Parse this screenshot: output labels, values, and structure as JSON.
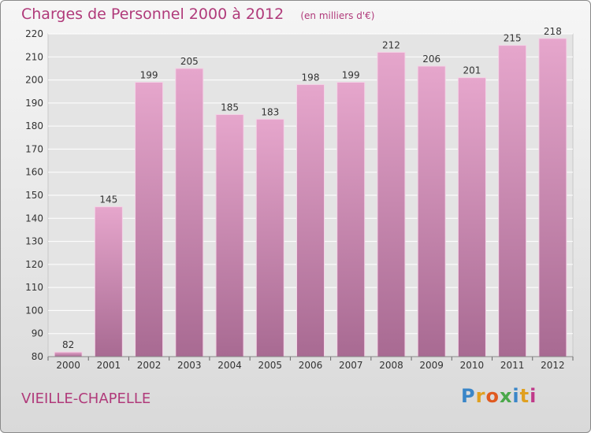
{
  "header": {
    "title": "Charges de Personnel 2000 à 2012",
    "unit": "(en milliers d'€)"
  },
  "footer": {
    "commune": "VIEILLE-CHAPELLE",
    "brand": "Proxiti"
  },
  "colors": {
    "title": "#b03a7a",
    "bar_top": "#e6a6cc",
    "bar_bottom": "#a86a92"
  },
  "chart_data": {
    "type": "bar",
    "title": "Charges de Personnel 2000 à 2012",
    "subtitle": "(en milliers d'€)",
    "categories": [
      "2000",
      "2001",
      "2002",
      "2003",
      "2004",
      "2005",
      "2006",
      "2007",
      "2008",
      "2009",
      "2010",
      "2011",
      "2012"
    ],
    "values": [
      82,
      145,
      199,
      205,
      185,
      183,
      198,
      199,
      212,
      206,
      201,
      215,
      218
    ],
    "ylim": [
      80,
      220
    ],
    "yticks": [
      80,
      90,
      100,
      110,
      120,
      130,
      140,
      150,
      160,
      170,
      180,
      190,
      200,
      210,
      220
    ],
    "grid": true,
    "data_labels": true
  }
}
